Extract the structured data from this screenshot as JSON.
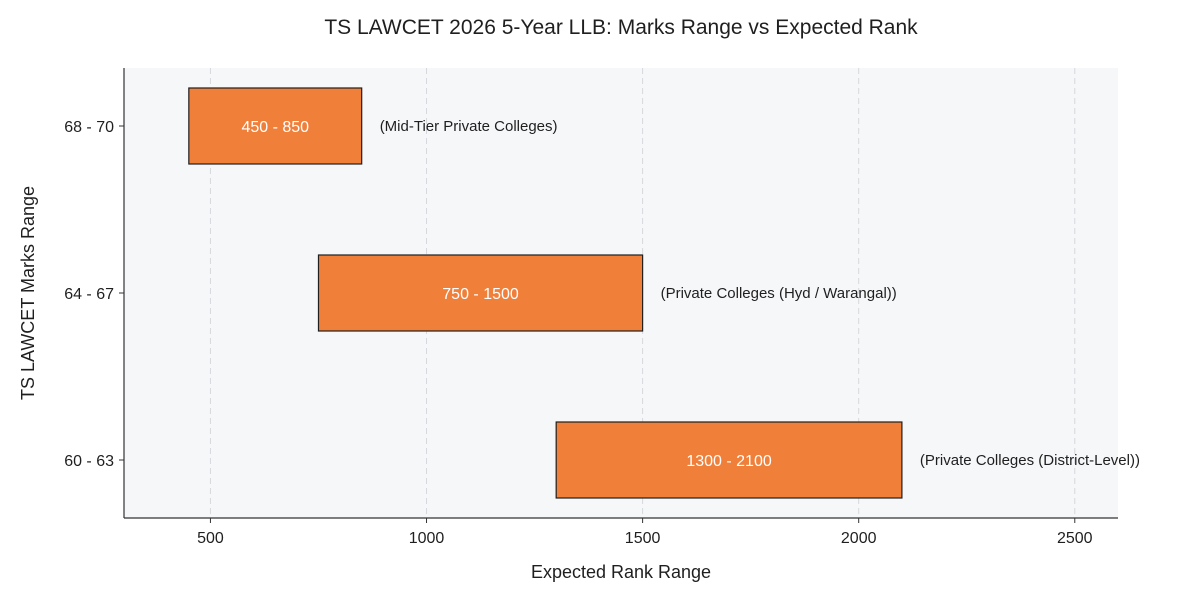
{
  "chart_data": {
    "type": "bar",
    "orientation": "horizontal-range",
    "title": "TS LAWCET 2026 5-Year LLB: Marks Range vs Expected Rank",
    "xlabel": "Expected Rank Range",
    "ylabel": "TS LAWCET Marks Range",
    "xlim": [
      300,
      2600
    ],
    "xticks": [
      500,
      1000,
      1500,
      2000,
      2500
    ],
    "grid": true,
    "colors": {
      "bar": "#f07f39",
      "plot_background": "#f6f7f9"
    },
    "categories": [
      "68 - 70",
      "64 - 67",
      "60 - 63"
    ],
    "ranges": [
      {
        "category": "68 - 70",
        "start": 450,
        "end": 850,
        "label": "450 - 850",
        "annotation": "(Mid-Tier Private Colleges)"
      },
      {
        "category": "64 - 67",
        "start": 750,
        "end": 1500,
        "label": "750 - 1500",
        "annotation": "(Private Colleges (Hyd / Warangal))"
      },
      {
        "category": "60 - 63",
        "start": 1300,
        "end": 2100,
        "label": "1300 - 2100",
        "annotation": "(Private Colleges (District-Level))"
      }
    ]
  }
}
